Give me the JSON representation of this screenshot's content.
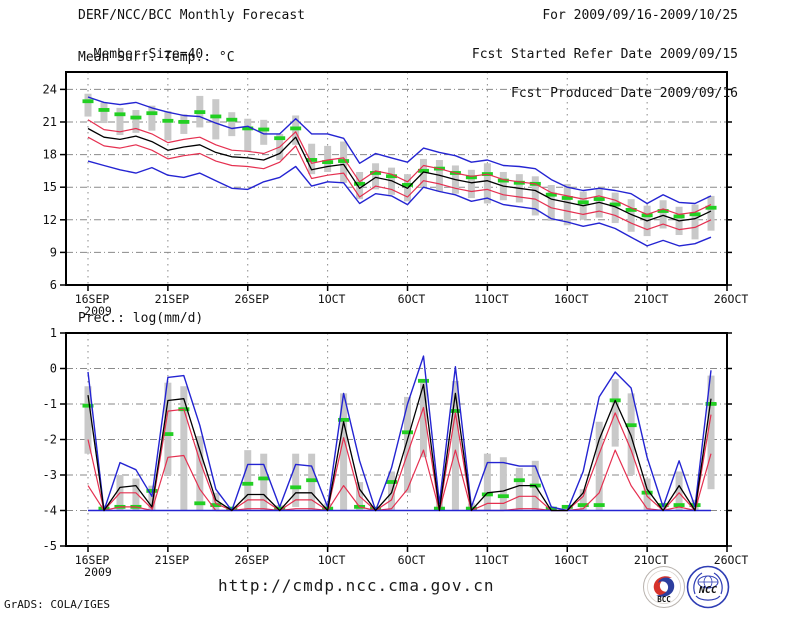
{
  "header": {
    "left": [
      "DERF/NCC/BCC Monthly Forecast",
      "Member Size=40"
    ],
    "right": [
      "For 2009/09/16-2009/10/25",
      "Fcst Started Refer Date 2009/09/15",
      "Fcst Produced Date 2009/09/16"
    ]
  },
  "footer": {
    "url": "http://cmdp.ncc.cma.gov.cn",
    "credit": "GrADS: COLA/IGES"
  },
  "logos": [
    {
      "name": "bcc-logo",
      "label": "BCC"
    },
    {
      "name": "ncc-logo",
      "label": "NCC"
    }
  ],
  "colors": {
    "max_min_line": "#2424d2",
    "quartile_line": "#e53050",
    "mid_line": "#000000",
    "mean_marker": "#22cf22",
    "spread_bar": "#c9c9c9",
    "grid": "#8a8a8a",
    "frame": "#000000"
  },
  "chart_data": [
    {
      "type": "line",
      "title": "Mean Surf. Temp.: °C",
      "ylabel": "",
      "ylim": [
        6,
        25.6
      ],
      "yticks": [
        24,
        21,
        18,
        15,
        12,
        9,
        6
      ],
      "xtick_days": [
        0,
        5,
        10,
        15,
        20,
        25,
        30,
        35,
        40
      ],
      "xtick_labels": [
        "16SEP",
        "21SEP",
        "26SEP",
        "1OCT",
        "6OCT",
        "11OCT",
        "16OCT",
        "21OCT",
        "26OCT"
      ],
      "xtick_year": "2009",
      "grid": true,
      "legend": "none",
      "bar_hi": [
        23.6,
        22.8,
        22.3,
        22.1,
        22.5,
        22.0,
        21.7,
        23.4,
        23.1,
        21.9,
        21.3,
        21.2,
        19.9,
        21.6,
        19.0,
        18.8,
        19.2,
        16.4,
        17.2,
        16.8,
        16.2,
        17.6,
        17.5,
        17.0,
        16.6,
        17.2,
        16.4,
        16.2,
        16.0,
        15.2,
        15.3,
        14.6,
        14.8,
        14.5,
        13.9,
        13.3,
        13.8,
        13.2,
        13.4,
        14.2
      ],
      "bar_lo": [
        21.5,
        20.9,
        19.8,
        20.0,
        20.2,
        19.3,
        19.9,
        20.5,
        19.4,
        19.7,
        18.3,
        18.9,
        17.5,
        18.9,
        16.2,
        16.4,
        15.4,
        13.9,
        14.8,
        14.3,
        13.7,
        15.0,
        14.6,
        14.4,
        14.0,
        13.5,
        13.8,
        13.6,
        12.4,
        11.9,
        11.5,
        12.0,
        12.2,
        11.7,
        10.9,
        10.5,
        11.2,
        10.6,
        10.2,
        11.0
      ],
      "green_mean": [
        22.9,
        22.1,
        21.7,
        21.4,
        21.8,
        21.1,
        21.0,
        21.9,
        21.5,
        21.2,
        20.4,
        20.3,
        19.5,
        20.4,
        17.5,
        17.3,
        17.4,
        15.3,
        16.3,
        16.0,
        15.2,
        16.5,
        16.7,
        16.3,
        15.9,
        16.2,
        15.6,
        15.4,
        15.3,
        14.3,
        14.0,
        13.6,
        13.9,
        13.4,
        12.9,
        12.4,
        12.8,
        12.3,
        12.5,
        13.1
      ],
      "blue_max": [
        23.3,
        22.8,
        22.6,
        22.8,
        22.3,
        21.9,
        21.6,
        21.5,
        20.9,
        20.4,
        20.6,
        19.9,
        19.9,
        21.3,
        19.9,
        19.9,
        19.5,
        17.2,
        18.1,
        17.7,
        17.3,
        18.6,
        18.2,
        17.9,
        17.3,
        17.5,
        17.0,
        16.9,
        16.7,
        15.7,
        15.0,
        14.7,
        14.9,
        14.7,
        14.4,
        13.5,
        14.3,
        13.6,
        13.5,
        14.2
      ],
      "red_upper": [
        21.2,
        20.3,
        20.1,
        20.4,
        19.9,
        19.1,
        19.4,
        19.6,
        18.9,
        18.4,
        18.3,
        18.1,
        18.7,
        20.1,
        17.2,
        17.5,
        17.7,
        15.5,
        16.5,
        16.2,
        15.5,
        17.0,
        16.7,
        16.3,
        16.0,
        16.2,
        15.7,
        15.5,
        15.3,
        14.5,
        14.2,
        13.9,
        14.2,
        13.8,
        13.1,
        12.5,
        13.0,
        12.5,
        12.7,
        13.4
      ],
      "black_mid": [
        20.4,
        19.6,
        19.4,
        19.7,
        19.2,
        18.4,
        18.7,
        18.9,
        18.2,
        17.8,
        17.7,
        17.5,
        18.1,
        19.6,
        16.6,
        16.9,
        17.1,
        14.9,
        15.9,
        15.6,
        14.9,
        16.4,
        16.1,
        15.7,
        15.4,
        15.6,
        15.1,
        14.9,
        14.7,
        13.9,
        13.6,
        13.3,
        13.6,
        13.2,
        12.5,
        11.9,
        12.4,
        11.9,
        12.1,
        12.8
      ],
      "red_lower": [
        19.6,
        18.8,
        18.6,
        18.9,
        18.4,
        17.6,
        17.9,
        18.1,
        17.4,
        17.0,
        16.9,
        16.7,
        17.3,
        18.8,
        15.8,
        16.1,
        16.3,
        14.1,
        15.1,
        14.8,
        14.1,
        15.6,
        15.3,
        14.9,
        14.6,
        14.8,
        14.3,
        14.1,
        13.9,
        13.1,
        12.8,
        12.5,
        12.8,
        12.4,
        11.7,
        11.1,
        11.6,
        11.1,
        11.3,
        12.0
      ],
      "blue_min": [
        17.4,
        17.0,
        16.6,
        16.3,
        16.8,
        16.1,
        15.9,
        16.3,
        15.6,
        14.9,
        14.8,
        15.5,
        15.9,
        16.9,
        15.1,
        15.5,
        15.4,
        13.5,
        14.4,
        14.2,
        13.4,
        15.0,
        14.6,
        14.3,
        13.7,
        14.0,
        13.4,
        13.2,
        13.0,
        12.1,
        11.8,
        11.4,
        11.7,
        11.2,
        10.4,
        9.6,
        10.1,
        9.6,
        9.8,
        10.4
      ]
    },
    {
      "type": "line",
      "title": "Prec.: log(mm/d)",
      "ylabel": "",
      "ylim": [
        -5,
        1
      ],
      "yticks": [
        1,
        0,
        -1,
        -2,
        -3,
        -4,
        -5
      ],
      "xtick_days": [
        0,
        5,
        10,
        15,
        20,
        25,
        30,
        35,
        40
      ],
      "xtick_labels": [
        "16SEP",
        "21SEP",
        "26SEP",
        "1OCT",
        "6OCT",
        "11OCT",
        "16OCT",
        "21OCT",
        "26OCT"
      ],
      "xtick_year": "2009",
      "grid": true,
      "legend": "none",
      "bar_hi": [
        -0.5,
        -3.85,
        -3.0,
        -3.1,
        -3.3,
        -0.4,
        -0.5,
        -1.9,
        -3.5,
        -3.9,
        -2.3,
        -2.4,
        -3.85,
        -2.4,
        -2.4,
        -3.8,
        -0.7,
        -3.2,
        -3.9,
        -2.9,
        -0.8,
        -0.3,
        -3.6,
        -0.35,
        -3.8,
        -2.4,
        -2.5,
        -2.8,
        -2.6,
        -3.9,
        -3.85,
        -3.4,
        -1.5,
        -0.3,
        -0.7,
        -3.1,
        -3.8,
        -2.9,
        -3.7,
        -0.2
      ],
      "bar_lo": [
        -2.4,
        -4,
        -4,
        -4,
        -4,
        -3.0,
        -4,
        -4,
        -4,
        -4,
        -4,
        -4,
        -4,
        -3.9,
        -4,
        -4,
        -4,
        -4,
        -4,
        -4,
        -3.5,
        -2.5,
        -4,
        -4,
        -4,
        -4,
        -4,
        -4,
        -4,
        -4,
        -4,
        -4,
        -4,
        -2.2,
        -3.0,
        -4,
        -4,
        -4,
        -4,
        -3.4
      ],
      "green_mean": [
        -1.05,
        -3.95,
        -3.9,
        -3.9,
        -3.45,
        -1.85,
        -1.15,
        -3.8,
        -3.85,
        -3.95,
        -3.25,
        -3.1,
        -3.95,
        -3.35,
        -3.15,
        -3.95,
        -1.45,
        -3.9,
        -3.95,
        -3.2,
        -1.8,
        -0.35,
        -3.95,
        -1.2,
        -3.95,
        -3.55,
        -3.6,
        -3.15,
        -3.3,
        -3.95,
        -3.9,
        -3.85,
        -3.85,
        -0.9,
        -1.6,
        -3.5,
        -3.85,
        -3.85,
        -3.85,
        -1.0
      ],
      "blue_max": [
        -0.1,
        -4,
        -2.65,
        -2.85,
        -3.6,
        -0.25,
        -0.2,
        -1.6,
        -3.4,
        -4,
        -2.7,
        -2.7,
        -3.9,
        -2.7,
        -2.75,
        -3.9,
        -0.7,
        -2.6,
        -4,
        -2.8,
        -1.0,
        0.35,
        -3.8,
        0.05,
        -3.9,
        -2.65,
        -2.65,
        -2.75,
        -2.75,
        -3.9,
        -4,
        -2.9,
        -0.8,
        -0.1,
        -0.55,
        -2.5,
        -3.9,
        -2.6,
        -3.9,
        -0.05
      ],
      "black_mid": [
        -0.75,
        -4,
        -3.35,
        -3.3,
        -3.9,
        -0.9,
        -0.85,
        -2.3,
        -3.7,
        -4,
        -3.55,
        -3.55,
        -4,
        -3.5,
        -3.5,
        -4,
        -1.5,
        -3.4,
        -4,
        -3.5,
        -2.0,
        -0.45,
        -4,
        -0.7,
        -4,
        -3.5,
        -3.45,
        -3.3,
        -3.3,
        -4,
        -4,
        -3.5,
        -2.0,
        -0.9,
        -1.9,
        -3.4,
        -4,
        -3.3,
        -4,
        -0.85
      ],
      "red_upper": [
        -2.0,
        -4,
        -3.5,
        -3.5,
        -3.95,
        -1.2,
        -1.15,
        -2.6,
        -3.8,
        -4,
        -3.7,
        -3.7,
        -4,
        -3.7,
        -3.7,
        -4,
        -1.95,
        -3.6,
        -4,
        -3.7,
        -2.4,
        -1.1,
        -4,
        -1.25,
        -4,
        -3.8,
        -3.8,
        -3.6,
        -3.6,
        -4,
        -4,
        -3.6,
        -2.4,
        -1.25,
        -2.3,
        -3.6,
        -4,
        -3.5,
        -4,
        -1.3
      ],
      "red_lower": [
        -3.3,
        -4,
        -3.9,
        -3.9,
        -4,
        -2.5,
        -2.45,
        -3.4,
        -4,
        -4,
        -3.95,
        -3.95,
        -4,
        -3.95,
        -3.95,
        -4,
        -3.3,
        -3.9,
        -4,
        -3.95,
        -3.4,
        -2.3,
        -4,
        -2.3,
        -4,
        -4,
        -4,
        -3.95,
        -3.95,
        -4,
        -4,
        -3.95,
        -3.5,
        -2.3,
        -3.3,
        -3.95,
        -4,
        -3.9,
        -4,
        -2.4
      ],
      "blue_min": [
        -4,
        -4,
        -4,
        -4,
        -4,
        -4,
        -4,
        -4,
        -4,
        -4,
        -4,
        -4,
        -4,
        -4,
        -4,
        -4,
        -4,
        -4,
        -4,
        -4,
        -4,
        -4,
        -4,
        -4,
        -4,
        -4,
        -4,
        -4,
        -4,
        -4,
        -4,
        -4,
        -4,
        -4,
        -4,
        -4,
        -4,
        -4,
        -4,
        -4
      ]
    }
  ]
}
